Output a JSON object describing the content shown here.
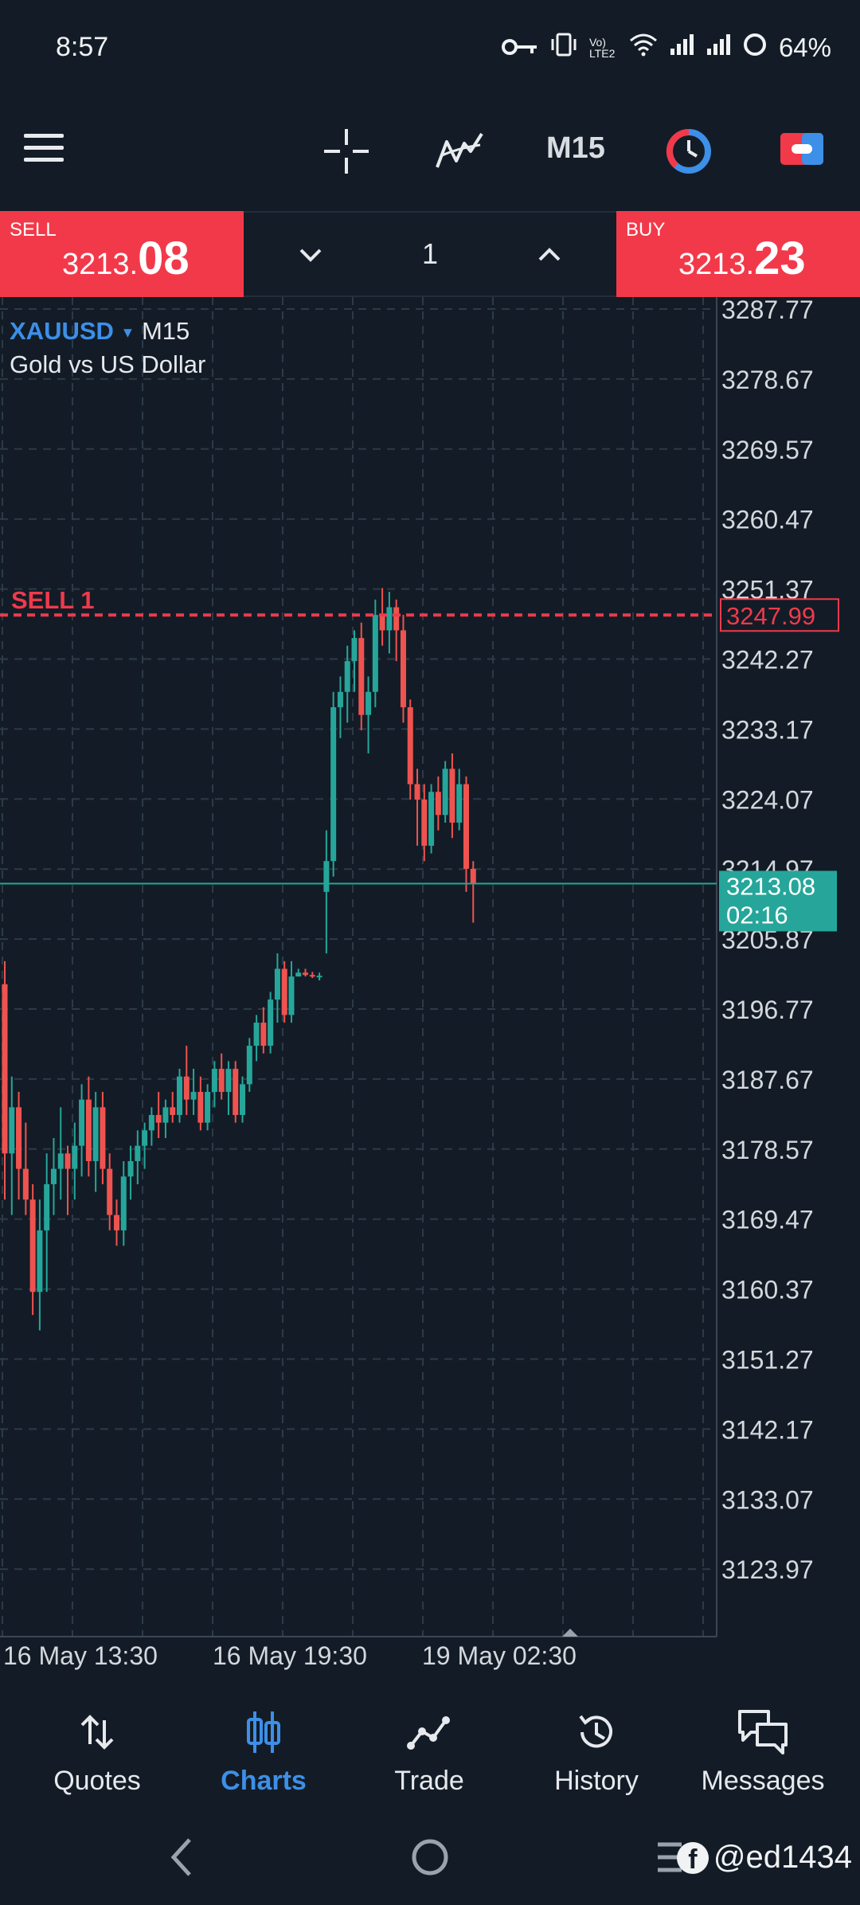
{
  "status_bar": {
    "time": "8:57",
    "network_label": "Vo) LTE2",
    "battery": "64%"
  },
  "toolbar": {
    "timeframe": "M15"
  },
  "trade": {
    "sell_label": "SELL",
    "sell_price_main": "3213.",
    "sell_price_big": "08",
    "buy_label": "BUY",
    "buy_price_main": "3213.",
    "buy_price_big": "23",
    "volume": "1"
  },
  "chart": {
    "symbol": "XAUUSD",
    "timeframe": "M15",
    "description": "Gold vs US Dollar",
    "order_line_label": "SELL 1",
    "order_line_price": "3247.99",
    "current_price": "3213.08",
    "countdown": "02:16",
    "colors": {
      "up": "#26a69a",
      "down": "#ef5350",
      "order": "#ef3a4c",
      "grid": "#2c3a48",
      "bg": "#131c26"
    }
  },
  "chart_data": {
    "type": "candlestick",
    "y_ticks": [
      "3287.77",
      "3278.67",
      "3269.57",
      "3260.47",
      "3251.37",
      "3242.27",
      "3233.17",
      "3224.07",
      "3214.97",
      "3205.87",
      "3196.77",
      "3187.67",
      "3178.57",
      "3169.47",
      "3160.37",
      "3151.27",
      "3142.17",
      "3133.07",
      "3123.97"
    ],
    "x_ticks": [
      "16 May 13:30",
      "16 May 19:30",
      "19 May 02:30"
    ],
    "ylim": [
      3118.0,
      3290.0
    ],
    "order_level": 3247.99,
    "current_level": 3213.08,
    "candles": [
      {
        "o": 3200.0,
        "h": 3203.0,
        "l": 3172.0,
        "c": 3178.0
      },
      {
        "o": 3178.0,
        "h": 3188.0,
        "l": 3170.0,
        "c": 3184.0
      },
      {
        "o": 3184.0,
        "h": 3186.0,
        "l": 3172.0,
        "c": 3176.0
      },
      {
        "o": 3176.0,
        "h": 3182.0,
        "l": 3170.0,
        "c": 3172.0
      },
      {
        "o": 3172.0,
        "h": 3174.0,
        "l": 3157.0,
        "c": 3160.0
      },
      {
        "o": 3160.0,
        "h": 3172.0,
        "l": 3155.0,
        "c": 3168.0
      },
      {
        "o": 3168.0,
        "h": 3178.0,
        "l": 3160.0,
        "c": 3174.0
      },
      {
        "o": 3174.0,
        "h": 3180.0,
        "l": 3170.0,
        "c": 3176.0
      },
      {
        "o": 3176.0,
        "h": 3184.0,
        "l": 3172.0,
        "c": 3178.0
      },
      {
        "o": 3178.0,
        "h": 3179.0,
        "l": 3170.0,
        "c": 3176.0
      },
      {
        "o": 3176.0,
        "h": 3182.0,
        "l": 3172.0,
        "c": 3179.0
      },
      {
        "o": 3179.0,
        "h": 3187.0,
        "l": 3175.0,
        "c": 3185.0
      },
      {
        "o": 3185.0,
        "h": 3188.0,
        "l": 3175.0,
        "c": 3177.0
      },
      {
        "o": 3177.0,
        "h": 3186.0,
        "l": 3173.0,
        "c": 3184.0
      },
      {
        "o": 3184.0,
        "h": 3186.0,
        "l": 3174.0,
        "c": 3176.0
      },
      {
        "o": 3176.0,
        "h": 3178.0,
        "l": 3168.0,
        "c": 3170.0
      },
      {
        "o": 3170.0,
        "h": 3172.0,
        "l": 3166.0,
        "c": 3168.0
      },
      {
        "o": 3168.0,
        "h": 3177.0,
        "l": 3166.0,
        "c": 3175.0
      },
      {
        "o": 3175.0,
        "h": 3179.0,
        "l": 3172.0,
        "c": 3177.0
      },
      {
        "o": 3177.0,
        "h": 3181.0,
        "l": 3174.0,
        "c": 3179.0
      },
      {
        "o": 3179.0,
        "h": 3182.0,
        "l": 3176.0,
        "c": 3181.0
      },
      {
        "o": 3181.0,
        "h": 3184.0,
        "l": 3179.0,
        "c": 3183.0
      },
      {
        "o": 3183.0,
        "h": 3186.0,
        "l": 3180.0,
        "c": 3182.0
      },
      {
        "o": 3182.0,
        "h": 3185.0,
        "l": 3180.0,
        "c": 3184.0
      },
      {
        "o": 3184.0,
        "h": 3186.0,
        "l": 3182.0,
        "c": 3183.0
      },
      {
        "o": 3183.0,
        "h": 3189.0,
        "l": 3182.0,
        "c": 3188.0
      },
      {
        "o": 3188.0,
        "h": 3192.0,
        "l": 3183.0,
        "c": 3185.0
      },
      {
        "o": 3185.0,
        "h": 3189.0,
        "l": 3183.0,
        "c": 3186.0
      },
      {
        "o": 3186.0,
        "h": 3188.0,
        "l": 3181.0,
        "c": 3182.0
      },
      {
        "o": 3182.0,
        "h": 3187.0,
        "l": 3181.0,
        "c": 3186.0
      },
      {
        "o": 3186.0,
        "h": 3190.0,
        "l": 3184.0,
        "c": 3189.0
      },
      {
        "o": 3189.0,
        "h": 3191.0,
        "l": 3185.0,
        "c": 3186.0
      },
      {
        "o": 3186.0,
        "h": 3190.0,
        "l": 3183.0,
        "c": 3189.0
      },
      {
        "o": 3189.0,
        "h": 3190.0,
        "l": 3182.0,
        "c": 3183.0
      },
      {
        "o": 3183.0,
        "h": 3188.0,
        "l": 3182.0,
        "c": 3187.0
      },
      {
        "o": 3187.0,
        "h": 3193.0,
        "l": 3186.0,
        "c": 3192.0
      },
      {
        "o": 3192.0,
        "h": 3196.0,
        "l": 3190.0,
        "c": 3195.0
      },
      {
        "o": 3195.0,
        "h": 3197.0,
        "l": 3191.0,
        "c": 3192.0
      },
      {
        "o": 3192.0,
        "h": 3199.0,
        "l": 3191.0,
        "c": 3198.0
      },
      {
        "o": 3198.0,
        "h": 3204.0,
        "l": 3195.0,
        "c": 3202.0
      },
      {
        "o": 3202.0,
        "h": 3203.0,
        "l": 3195.0,
        "c": 3196.0
      },
      {
        "o": 3196.0,
        "h": 3203.0,
        "l": 3195.0,
        "c": 3201.0
      },
      {
        "o": 3201.0,
        "h": 3202.0,
        "l": 3201.0,
        "c": 3201.5
      },
      {
        "o": 3201.5,
        "h": 3202.0,
        "l": 3201.0,
        "c": 3201.2
      },
      {
        "o": 3201.2,
        "h": 3201.6,
        "l": 3200.8,
        "c": 3201.0
      },
      {
        "o": 3201.0,
        "h": 3201.5,
        "l": 3200.5,
        "c": 3201.1
      },
      {
        "o": 3212.0,
        "h": 3220.0,
        "l": 3204.0,
        "c": 3216.0
      },
      {
        "o": 3216.0,
        "h": 3238.0,
        "l": 3214.0,
        "c": 3236.0
      },
      {
        "o": 3236.0,
        "h": 3240.0,
        "l": 3232.0,
        "c": 3238.0
      },
      {
        "o": 3238.0,
        "h": 3244.0,
        "l": 3234.0,
        "c": 3242.0
      },
      {
        "o": 3242.0,
        "h": 3246.0,
        "l": 3238.0,
        "c": 3245.0
      },
      {
        "o": 3245.0,
        "h": 3247.0,
        "l": 3233.0,
        "c": 3235.0
      },
      {
        "o": 3235.0,
        "h": 3240.0,
        "l": 3230.0,
        "c": 3238.0
      },
      {
        "o": 3238.0,
        "h": 3250.0,
        "l": 3236.0,
        "c": 3248.0
      },
      {
        "o": 3248.0,
        "h": 3251.5,
        "l": 3244.0,
        "c": 3246.0
      },
      {
        "o": 3246.0,
        "h": 3251.0,
        "l": 3243.0,
        "c": 3249.0
      },
      {
        "o": 3249.0,
        "h": 3250.0,
        "l": 3242.0,
        "c": 3246.0
      },
      {
        "o": 3246.0,
        "h": 3248.0,
        "l": 3234.0,
        "c": 3236.0
      },
      {
        "o": 3236.0,
        "h": 3237.0,
        "l": 3224.0,
        "c": 3226.0
      },
      {
        "o": 3226.0,
        "h": 3228.0,
        "l": 3218.0,
        "c": 3224.0
      },
      {
        "o": 3224.0,
        "h": 3226.0,
        "l": 3216.0,
        "c": 3218.0
      },
      {
        "o": 3218.0,
        "h": 3226.0,
        "l": 3217.0,
        "c": 3225.0
      },
      {
        "o": 3225.0,
        "h": 3227.0,
        "l": 3220.0,
        "c": 3222.0
      },
      {
        "o": 3222.0,
        "h": 3229.0,
        "l": 3221.0,
        "c": 3228.0
      },
      {
        "o": 3228.0,
        "h": 3230.0,
        "l": 3219.0,
        "c": 3221.0
      },
      {
        "o": 3221.0,
        "h": 3228.0,
        "l": 3220.0,
        "c": 3226.0
      },
      {
        "o": 3226.0,
        "h": 3227.0,
        "l": 3212.0,
        "c": 3215.0
      },
      {
        "o": 3215.0,
        "h": 3216.0,
        "l": 3208.0,
        "c": 3213.08
      }
    ]
  },
  "nav": {
    "items": [
      {
        "label": "Quotes",
        "icon": "arrows-updown-icon"
      },
      {
        "label": "Charts",
        "icon": "candles-icon"
      },
      {
        "label": "Trade",
        "icon": "trend-icon"
      },
      {
        "label": "History",
        "icon": "history-icon"
      },
      {
        "label": "Messages",
        "icon": "chat-icon"
      }
    ]
  },
  "watermark": "@ed1434"
}
